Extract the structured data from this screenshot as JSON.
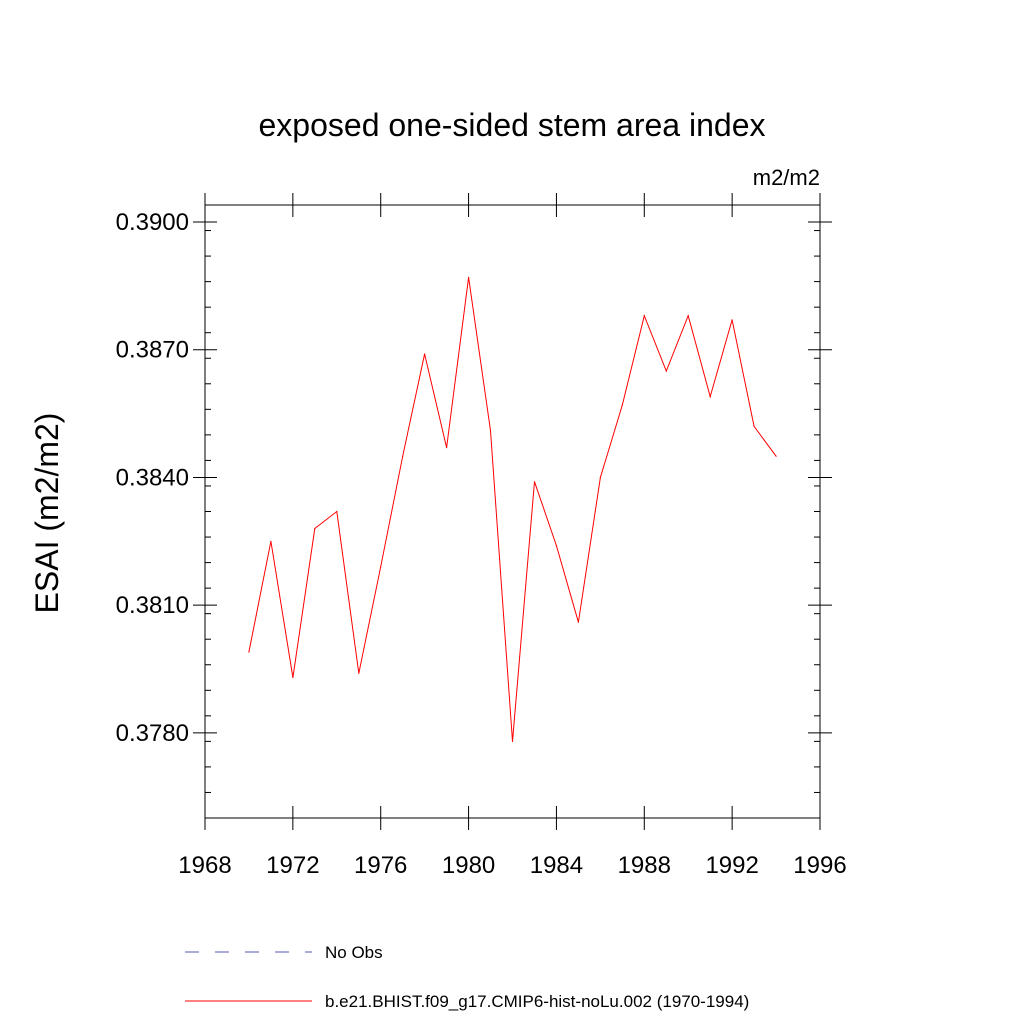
{
  "chart_data": {
    "type": "line",
    "title": "exposed one-sided stem area index",
    "units": "m2/m2",
    "ylabel": "ESAI  (m2/m2)",
    "xlabel": "",
    "xlim": [
      1968,
      1996
    ],
    "ylim": [
      0.376,
      0.3904
    ],
    "xticks": [
      1968,
      1972,
      1976,
      1980,
      1984,
      1988,
      1992,
      1996
    ],
    "yticks": [
      "0.3780",
      "0.3810",
      "0.3840",
      "0.3870",
      "0.3900"
    ],
    "grid": false,
    "legend_position": "bottom",
    "series": [
      {
        "name": "b.e21.BHIST.f09_g17.CMIP6-hist-noLu.002 (1970-1994)",
        "color": "#ff0000",
        "style": "solid",
        "x": [
          1970,
          1971,
          1972,
          1973,
          1974,
          1975,
          1976,
          1977,
          1978,
          1979,
          1980,
          1981,
          1982,
          1983,
          1984,
          1985,
          1986,
          1987,
          1988,
          1989,
          1990,
          1991,
          1992,
          1993,
          1994
        ],
        "y": [
          0.3799,
          0.3825,
          0.3793,
          0.3828,
          0.3832,
          0.3794,
          0.3819,
          0.3845,
          0.3869,
          0.3847,
          0.3887,
          0.3851,
          0.3778,
          0.3839,
          0.3824,
          0.3806,
          0.384,
          0.3857,
          0.3878,
          0.3865,
          0.3878,
          0.3859,
          0.3877,
          0.3852,
          0.3845
        ]
      }
    ],
    "legend": [
      {
        "label": "No Obs",
        "color": "#5a5ab4",
        "style": "dashed"
      },
      {
        "label": "b.e21.BHIST.f09_g17.CMIP6-hist-noLu.002 (1970-1994)",
        "color": "#ff0000",
        "style": "solid"
      }
    ]
  }
}
